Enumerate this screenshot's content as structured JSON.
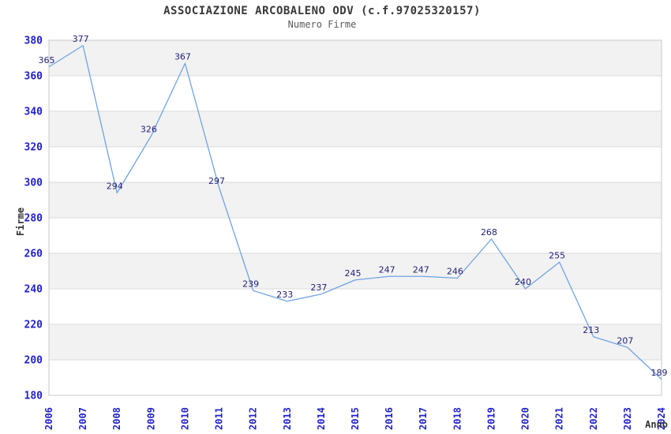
{
  "chart_data": {
    "type": "line",
    "title": "ASSOCIAZIONE ARCOBALENO ODV (c.f.97025320157)",
    "subtitle": "Numero Firme",
    "xlabel": "Anno",
    "ylabel": "Firme",
    "categories": [
      2006,
      2007,
      2008,
      2009,
      2010,
      2011,
      2012,
      2013,
      2014,
      2015,
      2016,
      2017,
      2018,
      2019,
      2020,
      2021,
      2022,
      2023,
      2024
    ],
    "series": [
      {
        "name": "Numero Firme",
        "values": [
          365,
          377,
          294,
          326,
          367,
          297,
          239,
          233,
          237,
          245,
          247,
          247,
          246,
          268,
          240,
          255,
          213,
          207,
          189
        ]
      }
    ],
    "ylim": [
      180,
      380
    ],
    "ytick_step": 20,
    "yticks": [
      180,
      200,
      220,
      240,
      260,
      280,
      300,
      320,
      340,
      360,
      380
    ],
    "grid": "horizontal gridlines with alternating shaded bands",
    "legend_position": "none",
    "data_labels_visible": true,
    "colors": {
      "line": "#6fa4e3",
      "band_fill": "#f2f2f2",
      "gridline": "#d9d9d9",
      "plot_border": "#c9c9c9",
      "axis_tick_label": "#2222cc",
      "data_label": "#1f1f7a",
      "title": "#383838",
      "subtitle": "#5a5a5a",
      "axis_title": "#333333",
      "background": "#ffffff"
    }
  }
}
